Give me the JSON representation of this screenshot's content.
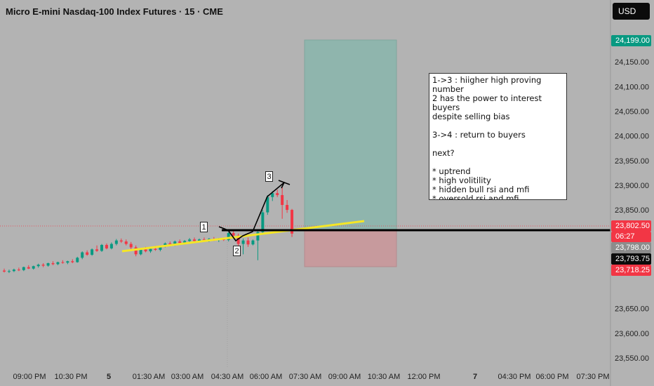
{
  "header": {
    "title": "Micro E-mini Nasdaq-100 Index Futures · 15 · CME",
    "currency": "USD"
  },
  "price_axis": {
    "ticks": [
      "24,150.00",
      "24,100.00",
      "24,050.00",
      "24,000.00",
      "23,950.00",
      "23,900.00",
      "23,850.00",
      "23,650.00",
      "23,600.00",
      "23,550.00"
    ],
    "labels": {
      "target": {
        "text": "24,199.00",
        "bg": "#089981",
        "fg": "#ffffff"
      },
      "last": {
        "text": "23,802.50",
        "bg": "#f23645",
        "fg": "#ffffff"
      },
      "countdown": {
        "text": "06:27",
        "bg": "#f23645",
        "fg": "#ffffff"
      },
      "entry": {
        "text": "23,798.00",
        "bg": "#8c8c8c",
        "fg": "#ffffff"
      },
      "crosshair": {
        "text": "23,793.75",
        "bg": "#0b0b0b",
        "fg": "#ffffff"
      },
      "stop": {
        "text": "23,718.25",
        "bg": "#f23645",
        "fg": "#ffffff"
      }
    }
  },
  "time_axis": {
    "ticks": [
      {
        "text": "09:00 PM",
        "bold": false
      },
      {
        "text": "10:30 PM",
        "bold": false
      },
      {
        "text": "5",
        "bold": true
      },
      {
        "text": "01:30 AM",
        "bold": false
      },
      {
        "text": "03:00 AM",
        "bold": false
      },
      {
        "text": "04:30 AM",
        "bold": false
      },
      {
        "text": "06:00 AM",
        "bold": false
      },
      {
        "text": "07:30 AM",
        "bold": false
      },
      {
        "text": "09:00 AM",
        "bold": false
      },
      {
        "text": "10:30 AM",
        "bold": false
      },
      {
        "text": "12:00 PM",
        "bold": false
      },
      {
        "text": "7",
        "bold": true
      },
      {
        "text": "04:30 PM",
        "bold": false
      },
      {
        "text": "06:00 PM",
        "bold": false
      },
      {
        "text": "07:30 PM",
        "bold": false
      }
    ]
  },
  "note": {
    "text": "1->3 : hiigher high proving number\n2 has the power to interest buyers\ndespite selling bias\n\n3->4 : return to buyers\n\nnext?\n\n* uptrend\n* high volitility\n* hidden bull rsi and mfi\n* oversold rsi and mfi\n*limit entry at turn point"
  },
  "markers": [
    "1",
    "2",
    "3"
  ],
  "colors": {
    "up": "#089981",
    "down": "#f23645",
    "trendline": "#f5e626",
    "entry_line": "#000000",
    "profit_zone": "#8fb5ad",
    "loss_zone": "#c79a9d"
  },
  "chart_data": {
    "type": "candlestick",
    "title": "Micro E-mini Nasdaq-100 Index Futures · 15 · CME",
    "ylim": [
      23520,
      24230
    ],
    "levels": {
      "take_profit": 24199.0,
      "entry": 23798.0,
      "stop_loss": 23718.25,
      "last_price": 23802.5,
      "crosshair": 23793.75
    },
    "candles": [
      {
        "o": 23727,
        "h": 23731,
        "l": 23723,
        "c": 23725
      },
      {
        "o": 23725,
        "h": 23729,
        "l": 23722,
        "c": 23726
      },
      {
        "o": 23726,
        "h": 23731,
        "l": 23724,
        "c": 23729
      },
      {
        "o": 23729,
        "h": 23733,
        "l": 23726,
        "c": 23728
      },
      {
        "o": 23728,
        "h": 23735,
        "l": 23726,
        "c": 23734
      },
      {
        "o": 23734,
        "h": 23738,
        "l": 23730,
        "c": 23731
      },
      {
        "o": 23731,
        "h": 23737,
        "l": 23729,
        "c": 23736
      },
      {
        "o": 23736,
        "h": 23741,
        "l": 23733,
        "c": 23739
      },
      {
        "o": 23739,
        "h": 23742,
        "l": 23734,
        "c": 23737
      },
      {
        "o": 23737,
        "h": 23743,
        "l": 23735,
        "c": 23742
      },
      {
        "o": 23742,
        "h": 23746,
        "l": 23738,
        "c": 23740
      },
      {
        "o": 23740,
        "h": 23745,
        "l": 23738,
        "c": 23744
      },
      {
        "o": 23744,
        "h": 23748,
        "l": 23741,
        "c": 23743
      },
      {
        "o": 23743,
        "h": 23747,
        "l": 23740,
        "c": 23746
      },
      {
        "o": 23746,
        "h": 23750,
        "l": 23742,
        "c": 23744
      },
      {
        "o": 23744,
        "h": 23755,
        "l": 23743,
        "c": 23753
      },
      {
        "o": 23753,
        "h": 23766,
        "l": 23750,
        "c": 23764
      },
      {
        "o": 23764,
        "h": 23768,
        "l": 23757,
        "c": 23759
      },
      {
        "o": 23759,
        "h": 23772,
        "l": 23757,
        "c": 23770
      },
      {
        "o": 23770,
        "h": 23778,
        "l": 23765,
        "c": 23767
      },
      {
        "o": 23767,
        "h": 23781,
        "l": 23765,
        "c": 23779
      },
      {
        "o": 23779,
        "h": 23782,
        "l": 23770,
        "c": 23772
      },
      {
        "o": 23772,
        "h": 23784,
        "l": 23770,
        "c": 23781
      },
      {
        "o": 23781,
        "h": 23791,
        "l": 23778,
        "c": 23788
      },
      {
        "o": 23788,
        "h": 23792,
        "l": 23783,
        "c": 23786
      },
      {
        "o": 23786,
        "h": 23790,
        "l": 23778,
        "c": 23781
      },
      {
        "o": 23781,
        "h": 23785,
        "l": 23770,
        "c": 23774
      },
      {
        "o": 23774,
        "h": 23778,
        "l": 23756,
        "c": 23760
      },
      {
        "o": 23760,
        "h": 23772,
        "l": 23758,
        "c": 23770
      },
      {
        "o": 23770,
        "h": 23775,
        "l": 23764,
        "c": 23766
      },
      {
        "o": 23766,
        "h": 23774,
        "l": 23763,
        "c": 23771
      },
      {
        "o": 23771,
        "h": 23777,
        "l": 23767,
        "c": 23769
      },
      {
        "o": 23769,
        "h": 23778,
        "l": 23766,
        "c": 23776
      },
      {
        "o": 23776,
        "h": 23784,
        "l": 23774,
        "c": 23782
      },
      {
        "o": 23782,
        "h": 23786,
        "l": 23776,
        "c": 23779
      },
      {
        "o": 23779,
        "h": 23788,
        "l": 23777,
        "c": 23786
      },
      {
        "o": 23786,
        "h": 23790,
        "l": 23781,
        "c": 23783
      },
      {
        "o": 23783,
        "h": 23789,
        "l": 23780,
        "c": 23787
      },
      {
        "o": 23787,
        "h": 23793,
        "l": 23784,
        "c": 23790
      },
      {
        "o": 23790,
        "h": 23794,
        "l": 23785,
        "c": 23787
      },
      {
        "o": 23787,
        "h": 23792,
        "l": 23784,
        "c": 23790
      },
      {
        "o": 23790,
        "h": 23794,
        "l": 23786,
        "c": 23788
      },
      {
        "o": 23788,
        "h": 23793,
        "l": 23785,
        "c": 23791
      },
      {
        "o": 23791,
        "h": 23795,
        "l": 23787,
        "c": 23789
      },
      {
        "o": 23789,
        "h": 23793,
        "l": 23785,
        "c": 23791
      },
      {
        "o": 23791,
        "h": 23794,
        "l": 23787,
        "c": 23789
      },
      {
        "o": 23789,
        "h": 23805,
        "l": 23786,
        "c": 23803
      },
      {
        "o": 23803,
        "h": 23809,
        "l": 23795,
        "c": 23798
      },
      {
        "o": 23798,
        "h": 23802,
        "l": 23777,
        "c": 23781
      },
      {
        "o": 23781,
        "h": 23792,
        "l": 23760,
        "c": 23788
      },
      {
        "o": 23788,
        "h": 23794,
        "l": 23775,
        "c": 23780
      },
      {
        "o": 23780,
        "h": 23790,
        "l": 23778,
        "c": 23788
      },
      {
        "o": 23788,
        "h": 23810,
        "l": 23748,
        "c": 23805
      },
      {
        "o": 23805,
        "h": 23850,
        "l": 23802,
        "c": 23845
      },
      {
        "o": 23845,
        "h": 23880,
        "l": 23840,
        "c": 23876
      },
      {
        "o": 23876,
        "h": 23888,
        "l": 23868,
        "c": 23884
      },
      {
        "o": 23884,
        "h": 23891,
        "l": 23876,
        "c": 23880
      },
      {
        "o": 23880,
        "h": 23896,
        "l": 23832,
        "c": 23860
      },
      {
        "o": 23860,
        "h": 23870,
        "l": 23844,
        "c": 23850
      },
      {
        "o": 23850,
        "h": 23852,
        "l": 23795,
        "c": 23802
      }
    ]
  }
}
